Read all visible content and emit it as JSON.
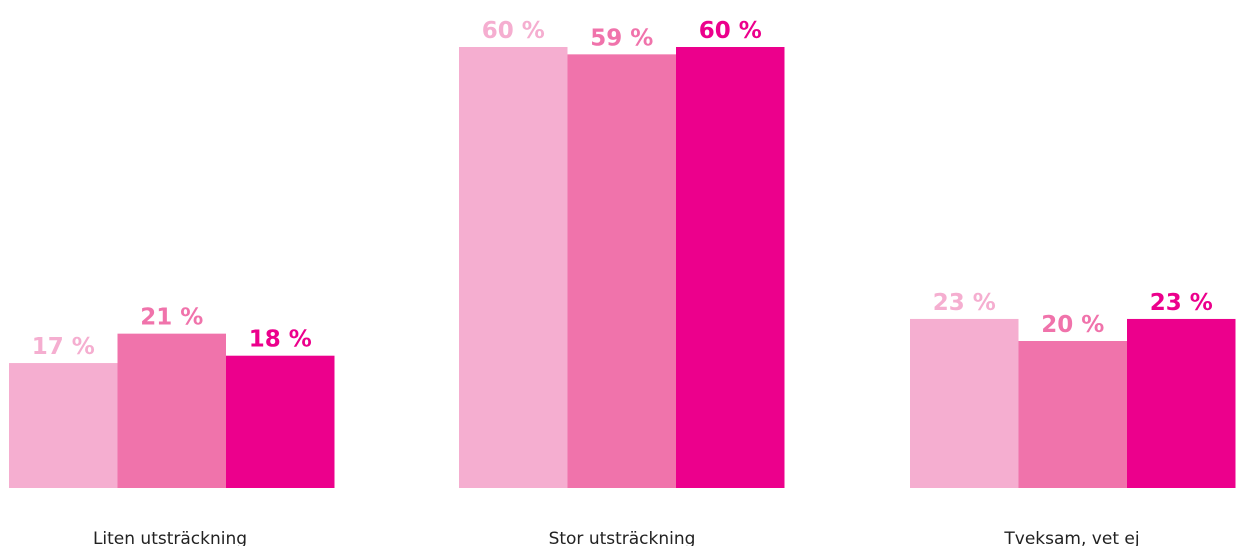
{
  "chart_data": {
    "type": "bar",
    "categories": [
      "Liten utsträckning",
      "Stor utsträckning",
      "Tveksam, vet ej"
    ],
    "series": [
      {
        "values": [
          17,
          60,
          23
        ],
        "color": "#f5aed0"
      },
      {
        "values": [
          21,
          59,
          20
        ],
        "color": "#f073ab"
      },
      {
        "values": [
          18,
          60,
          23
        ],
        "color": "#ec008c"
      }
    ],
    "value_suffix": " %",
    "ylim": [
      0,
      60
    ],
    "grid": false,
    "legend": "none"
  }
}
